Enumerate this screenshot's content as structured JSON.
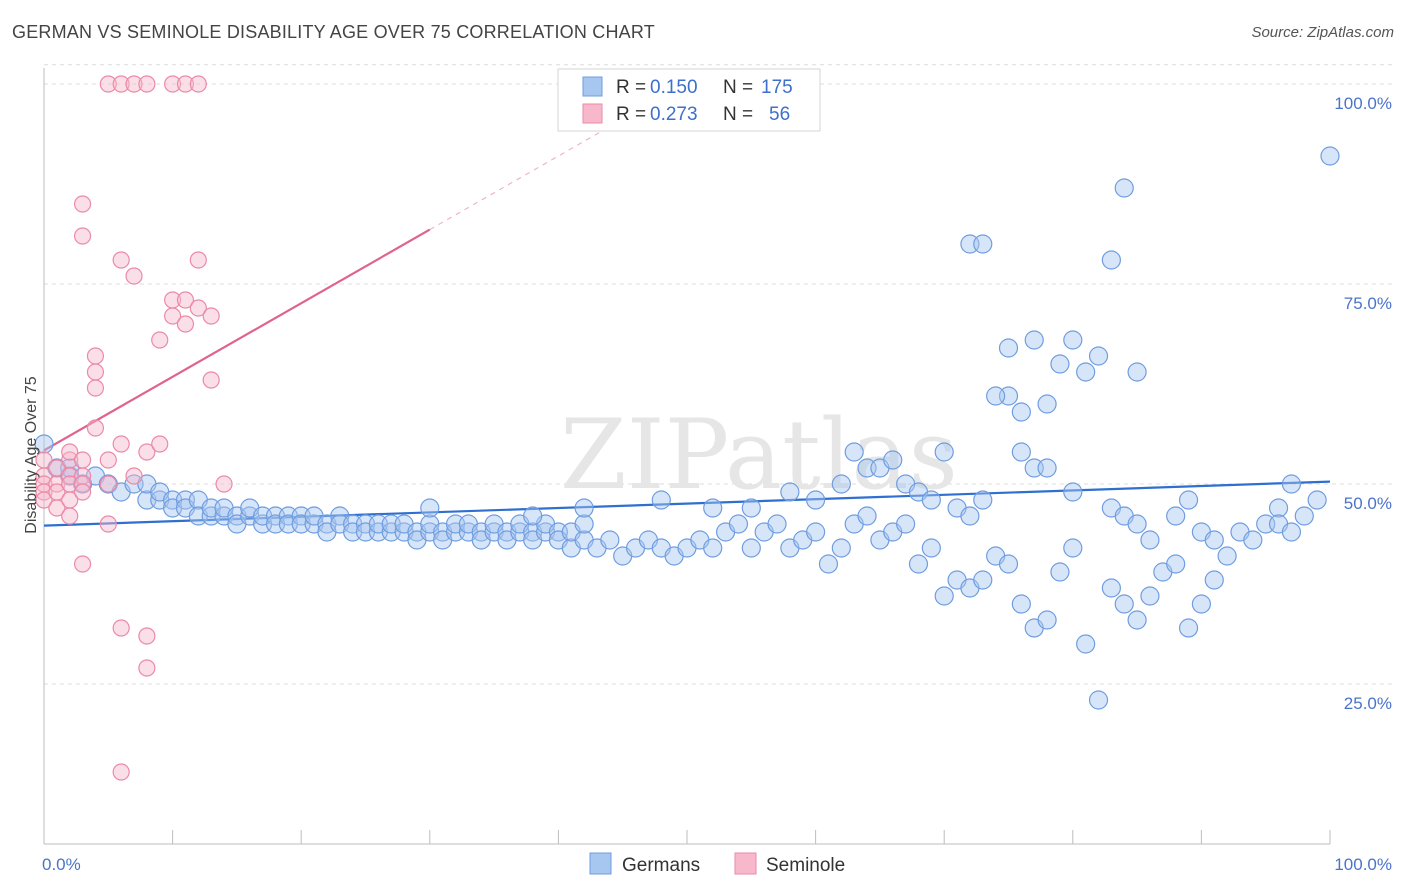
{
  "title": "GERMAN VS SEMINOLE DISABILITY AGE OVER 75 CORRELATION CHART",
  "source": "Source: ZipAtlas.com",
  "colors": {
    "german_fill": "#a7c6f0",
    "german_stroke": "#6f9de0",
    "german_line": "#2e6fd0",
    "seminole_fill": "#f7b8cc",
    "seminole_stroke": "#eb8aa8",
    "seminole_line": "#e0628f",
    "grid": "#dcdcdc",
    "tick_label": "#4a74c9"
  },
  "legend": {
    "rows": [
      {
        "r_label": "R =",
        "r_value": "0.150",
        "n_label": "N =",
        "n_value": "175"
      },
      {
        "r_label": "R =",
        "r_value": "0.273",
        "n_label": "N =",
        "n_value": "56"
      }
    ]
  },
  "bottom_legend": [
    "Germans",
    "Seminole"
  ],
  "chart_data": {
    "type": "scatter",
    "title": "GERMAN VS SEMINOLE DISABILITY AGE OVER 75 CORRELATION CHART",
    "xlabel": "",
    "ylabel": "Disability Age Over 75",
    "xlim": [
      0,
      100
    ],
    "ylim": [
      5,
      103
    ],
    "x_tick_labels": [
      "0.0%",
      "100.0%"
    ],
    "y_ticks": [
      25,
      50,
      75,
      100
    ],
    "y_tick_labels": [
      "25.0%",
      "50.0%",
      "75.0%",
      "100.0%"
    ],
    "grid": true,
    "watermark": "ZIPatlas",
    "series": [
      {
        "name": "Germans",
        "R": 0.15,
        "N": 175,
        "trend": {
          "x0": 0,
          "y0": 44.8,
          "x1": 100,
          "y1": 50.3
        },
        "points": [
          [
            0,
            55
          ],
          [
            1,
            52
          ],
          [
            2,
            51
          ],
          [
            2,
            52
          ],
          [
            3,
            50
          ],
          [
            4,
            51
          ],
          [
            5,
            50
          ],
          [
            6,
            49
          ],
          [
            7,
            50
          ],
          [
            8,
            48
          ],
          [
            8,
            50
          ],
          [
            9,
            48
          ],
          [
            9,
            49
          ],
          [
            10,
            48
          ],
          [
            10,
            47
          ],
          [
            11,
            48
          ],
          [
            11,
            47
          ],
          [
            12,
            48
          ],
          [
            12,
            46
          ],
          [
            13,
            46
          ],
          [
            13,
            47
          ],
          [
            14,
            46
          ],
          [
            14,
            47
          ],
          [
            15,
            46
          ],
          [
            15,
            45
          ],
          [
            16,
            46
          ],
          [
            16,
            47
          ],
          [
            17,
            45
          ],
          [
            17,
            46
          ],
          [
            18,
            46
          ],
          [
            18,
            45
          ],
          [
            19,
            46
          ],
          [
            19,
            45
          ],
          [
            20,
            46
          ],
          [
            20,
            45
          ],
          [
            21,
            45
          ],
          [
            21,
            46
          ],
          [
            22,
            45
          ],
          [
            22,
            44
          ],
          [
            23,
            46
          ],
          [
            23,
            45
          ],
          [
            24,
            45
          ],
          [
            24,
            44
          ],
          [
            25,
            45
          ],
          [
            25,
            44
          ],
          [
            26,
            44
          ],
          [
            26,
            45
          ],
          [
            27,
            44
          ],
          [
            27,
            45
          ],
          [
            28,
            44
          ],
          [
            28,
            45
          ],
          [
            29,
            44
          ],
          [
            29,
            43
          ],
          [
            30,
            44
          ],
          [
            30,
            45
          ],
          [
            31,
            44
          ],
          [
            31,
            43
          ],
          [
            32,
            44
          ],
          [
            32,
            45
          ],
          [
            33,
            44
          ],
          [
            33,
            45
          ],
          [
            34,
            44
          ],
          [
            34,
            43
          ],
          [
            35,
            44
          ],
          [
            35,
            45
          ],
          [
            36,
            44
          ],
          [
            36,
            43
          ],
          [
            37,
            44
          ],
          [
            37,
            45
          ],
          [
            38,
            44
          ],
          [
            38,
            43
          ],
          [
            39,
            44
          ],
          [
            39,
            45
          ],
          [
            40,
            44
          ],
          [
            40,
            43
          ],
          [
            41,
            42
          ],
          [
            41,
            44
          ],
          [
            42,
            43
          ],
          [
            42,
            45
          ],
          [
            43,
            42
          ],
          [
            44,
            43
          ],
          [
            45,
            41
          ],
          [
            46,
            42
          ],
          [
            47,
            43
          ],
          [
            48,
            42
          ],
          [
            49,
            41
          ],
          [
            50,
            42
          ],
          [
            51,
            43
          ],
          [
            52,
            42
          ],
          [
            53,
            44
          ],
          [
            54,
            45
          ],
          [
            55,
            42
          ],
          [
            56,
            44
          ],
          [
            57,
            45
          ],
          [
            58,
            42
          ],
          [
            59,
            43
          ],
          [
            60,
            44
          ],
          [
            61,
            40
          ],
          [
            62,
            42
          ],
          [
            63,
            45
          ],
          [
            64,
            46
          ],
          [
            65,
            43
          ],
          [
            66,
            44
          ],
          [
            67,
            45
          ],
          [
            68,
            40
          ],
          [
            69,
            42
          ],
          [
            70,
            36
          ],
          [
            71,
            38
          ],
          [
            72,
            37
          ],
          [
            73,
            38
          ],
          [
            74,
            41
          ],
          [
            75,
            40
          ],
          [
            76,
            35
          ],
          [
            77,
            32
          ],
          [
            78,
            33
          ],
          [
            79,
            39
          ],
          [
            80,
            42
          ],
          [
            81,
            30
          ],
          [
            82,
            23
          ],
          [
            83,
            37
          ],
          [
            84,
            35
          ],
          [
            85,
            33
          ],
          [
            86,
            36
          ],
          [
            87,
            39
          ],
          [
            88,
            40
          ],
          [
            89,
            32
          ],
          [
            90,
            35
          ],
          [
            91,
            38
          ],
          [
            92,
            41
          ],
          [
            93,
            44
          ],
          [
            94,
            43
          ],
          [
            95,
            45
          ],
          [
            96,
            47
          ],
          [
            97,
            50
          ],
          [
            98,
            46
          ],
          [
            99,
            48
          ],
          [
            100,
            91
          ],
          [
            30,
            47
          ],
          [
            38,
            46
          ],
          [
            42,
            47
          ],
          [
            48,
            48
          ],
          [
            52,
            47
          ],
          [
            55,
            47
          ],
          [
            58,
            49
          ],
          [
            60,
            48
          ],
          [
            62,
            50
          ],
          [
            63,
            54
          ],
          [
            64,
            52
          ],
          [
            65,
            52
          ],
          [
            66,
            53
          ],
          [
            67,
            50
          ],
          [
            68,
            49
          ],
          [
            69,
            48
          ],
          [
            70,
            54
          ],
          [
            71,
            47
          ],
          [
            72,
            46
          ],
          [
            73,
            48
          ],
          [
            75,
            61
          ],
          [
            76,
            54
          ],
          [
            77,
            52
          ],
          [
            78,
            52
          ],
          [
            80,
            49
          ],
          [
            83,
            47
          ],
          [
            84,
            46
          ],
          [
            85,
            45
          ],
          [
            86,
            43
          ],
          [
            88,
            46
          ],
          [
            89,
            48
          ],
          [
            90,
            44
          ],
          [
            91,
            43
          ],
          [
            96,
            45
          ],
          [
            97,
            44
          ],
          [
            72,
            80
          ],
          [
            73,
            80
          ],
          [
            74,
            61
          ],
          [
            75,
            67
          ],
          [
            76,
            59
          ],
          [
            77,
            68
          ],
          [
            78,
            60
          ],
          [
            79,
            65
          ],
          [
            80,
            68
          ],
          [
            81,
            64
          ],
          [
            82,
            66
          ],
          [
            83,
            78
          ],
          [
            84,
            87
          ],
          [
            85,
            64
          ]
        ]
      },
      {
        "name": "Seminole",
        "R": 0.273,
        "N": 56,
        "trend": {
          "x0": 0,
          "y0": 54.2,
          "x1": 30,
          "y1": 81.8,
          "dashed_to_x": 50,
          "dashed_to_y": 100.2
        },
        "points": [
          [
            0,
            53
          ],
          [
            0,
            51
          ],
          [
            0,
            50
          ],
          [
            0,
            49
          ],
          [
            0,
            48
          ],
          [
            1,
            52
          ],
          [
            1,
            50
          ],
          [
            1,
            49
          ],
          [
            1,
            47
          ],
          [
            2,
            53
          ],
          [
            2,
            51
          ],
          [
            2,
            50
          ],
          [
            2,
            48
          ],
          [
            2,
            54
          ],
          [
            2,
            46
          ],
          [
            3,
            51
          ],
          [
            3,
            50
          ],
          [
            3,
            49
          ],
          [
            3,
            53
          ],
          [
            3,
            40
          ],
          [
            3,
            85
          ],
          [
            3,
            81
          ],
          [
            4,
            64
          ],
          [
            4,
            62
          ],
          [
            4,
            66
          ],
          [
            4,
            57
          ],
          [
            5,
            53
          ],
          [
            5,
            50
          ],
          [
            5,
            45
          ],
          [
            6,
            55
          ],
          [
            6,
            32
          ],
          [
            6,
            78
          ],
          [
            6,
            14
          ],
          [
            7,
            51
          ],
          [
            7,
            76
          ],
          [
            8,
            54
          ],
          [
            8,
            31
          ],
          [
            8,
            27
          ],
          [
            9,
            55
          ],
          [
            9,
            68
          ],
          [
            10,
            73
          ],
          [
            10,
            71
          ],
          [
            11,
            70
          ],
          [
            11,
            73
          ],
          [
            12,
            78
          ],
          [
            12,
            72
          ],
          [
            13,
            63
          ],
          [
            13,
            71
          ],
          [
            14,
            50
          ],
          [
            5,
            100
          ],
          [
            6,
            100
          ],
          [
            7,
            100
          ],
          [
            8,
            100
          ],
          [
            10,
            100
          ],
          [
            11,
            100
          ],
          [
            12,
            100
          ]
        ]
      }
    ]
  }
}
